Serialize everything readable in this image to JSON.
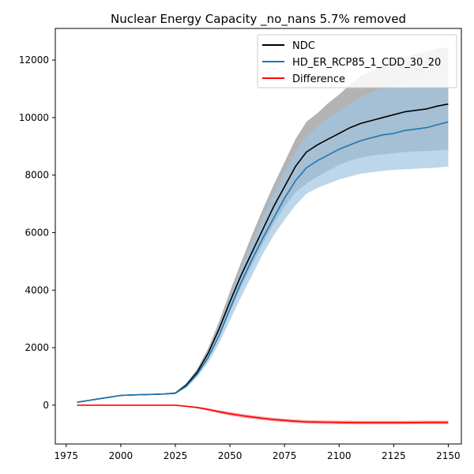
{
  "chart_data": {
    "type": "line",
    "title": "Nuclear Energy Capacity _no_nans 5.7% removed",
    "xlabel": "",
    "ylabel": "",
    "xlim": [
      1970,
      2156
    ],
    "ylim": [
      -1350,
      13100
    ],
    "xticks": [
      1975,
      2000,
      2025,
      2050,
      2075,
      2100,
      2125,
      2150
    ],
    "yticks": [
      0,
      2000,
      4000,
      6000,
      8000,
      10000,
      12000
    ],
    "grid": false,
    "legend": "top-right",
    "x": [
      1980,
      1985,
      1990,
      1995,
      2000,
      2005,
      2010,
      2015,
      2020,
      2025,
      2030,
      2035,
      2040,
      2045,
      2050,
      2055,
      2060,
      2065,
      2070,
      2075,
      2080,
      2085,
      2090,
      2095,
      2100,
      2105,
      2110,
      2115,
      2120,
      2125,
      2130,
      2135,
      2140,
      2145,
      2150
    ],
    "series": [
      {
        "name": "NDC",
        "color": "#000000",
        "band_color": "#b3b3b3",
        "values": [
          100,
          160,
          220,
          280,
          340,
          355,
          365,
          375,
          390,
          420,
          700,
          1150,
          1800,
          2650,
          3600,
          4500,
          5300,
          6100,
          6900,
          7600,
          8300,
          8800,
          9050,
          9250,
          9450,
          9650,
          9800,
          9900,
          10000,
          10100,
          10200,
          10250,
          10300,
          10400,
          10470
        ],
        "lower": [
          90,
          150,
          210,
          270,
          330,
          345,
          355,
          365,
          380,
          400,
          650,
          1050,
          1650,
          2400,
          3250,
          4100,
          4850,
          5600,
          6300,
          6900,
          7400,
          7700,
          7950,
          8150,
          8350,
          8500,
          8600,
          8680,
          8720,
          8760,
          8800,
          8820,
          8840,
          8860,
          8880
        ],
        "upper": [
          110,
          170,
          230,
          290,
          350,
          365,
          375,
          385,
          400,
          440,
          760,
          1260,
          1970,
          2900,
          3950,
          4950,
          5900,
          6800,
          7650,
          8450,
          9250,
          9850,
          10150,
          10500,
          10800,
          11150,
          11450,
          11650,
          11800,
          11950,
          12100,
          12200,
          12300,
          12400,
          12450
        ]
      },
      {
        "name": "HD_ER_RCP85_1_CDD_30_20",
        "color": "#1f77b4",
        "band_color": "#9fc5e3",
        "values": [
          100,
          160,
          220,
          280,
          340,
          355,
          365,
          375,
          390,
          410,
          660,
          1080,
          1650,
          2420,
          3350,
          4250,
          5050,
          5800,
          6500,
          7200,
          7800,
          8250,
          8500,
          8700,
          8900,
          9050,
          9200,
          9300,
          9400,
          9450,
          9550,
          9600,
          9650,
          9750,
          9850
        ],
        "lower": [
          90,
          150,
          210,
          270,
          330,
          345,
          355,
          365,
          380,
          400,
          600,
          980,
          1480,
          2150,
          2950,
          3750,
          4500,
          5250,
          5900,
          6450,
          6950,
          7350,
          7550,
          7700,
          7850,
          7950,
          8050,
          8100,
          8150,
          8180,
          8200,
          8220,
          8240,
          8260,
          8300
        ],
        "upper": [
          110,
          170,
          230,
          290,
          350,
          365,
          375,
          385,
          400,
          430,
          720,
          1200,
          1850,
          2700,
          3750,
          4750,
          5650,
          6500,
          7350,
          8100,
          8800,
          9350,
          9700,
          10000,
          10250,
          10500,
          10700,
          10900,
          11000,
          11100,
          11200,
          11300,
          11400,
          11450,
          11500
        ]
      },
      {
        "name": "Difference",
        "color": "#ff0000",
        "band_color": "#f4a6a6",
        "values": [
          0,
          0,
          0,
          0,
          0,
          0,
          0,
          0,
          0,
          0,
          -40,
          -80,
          -150,
          -230,
          -300,
          -360,
          -410,
          -460,
          -500,
          -530,
          -560,
          -580,
          -590,
          -595,
          -600,
          -603,
          -605,
          -605,
          -605,
          -605,
          -605,
          -603,
          -600,
          -600,
          -600
        ],
        "lower": [
          0,
          0,
          0,
          0,
          0,
          0,
          0,
          0,
          0,
          0,
          -60,
          -110,
          -190,
          -280,
          -360,
          -420,
          -470,
          -520,
          -560,
          -590,
          -620,
          -640,
          -650,
          -655,
          -660,
          -665,
          -665,
          -665,
          -665,
          -665,
          -665,
          -663,
          -660,
          -660,
          -660
        ],
        "upper": [
          0,
          0,
          0,
          0,
          0,
          0,
          0,
          0,
          0,
          0,
          -20,
          -50,
          -110,
          -180,
          -240,
          -300,
          -350,
          -400,
          -440,
          -470,
          -500,
          -520,
          -530,
          -535,
          -540,
          -541,
          -545,
          -545,
          -545,
          -545,
          -545,
          -543,
          -540,
          -540,
          -540
        ]
      }
    ]
  }
}
